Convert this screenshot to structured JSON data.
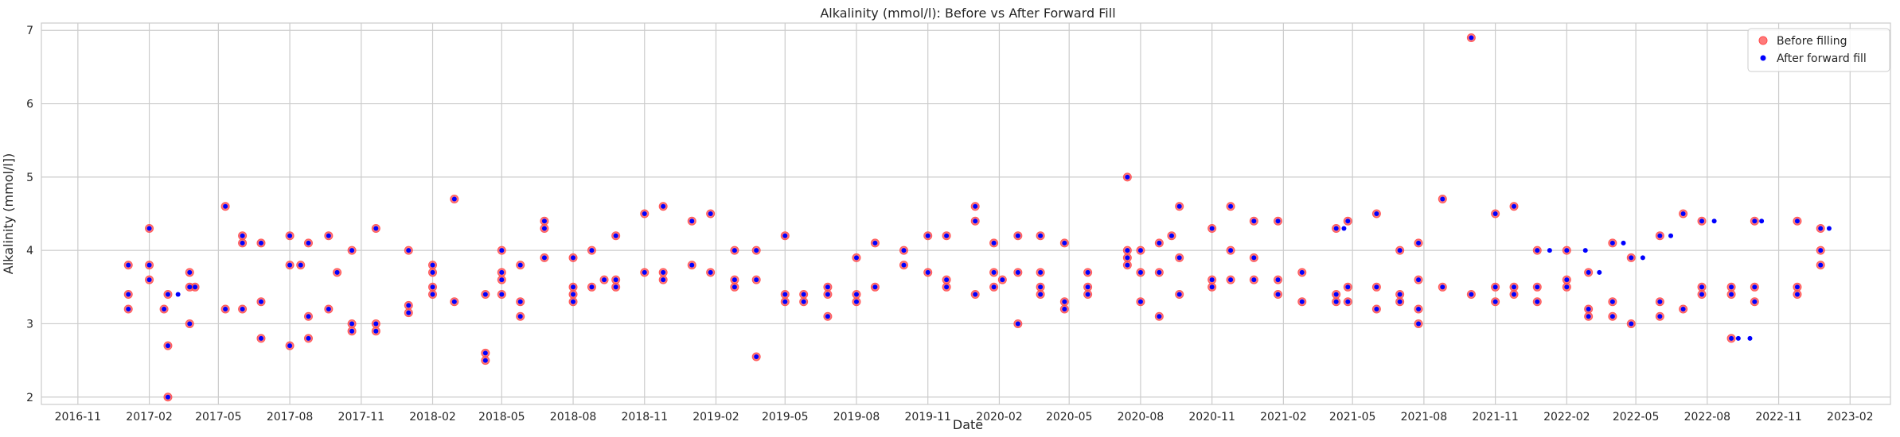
{
  "chart_data": {
    "type": "scatter",
    "title": "Alkalinity (mmol/l): Before vs After Forward Fill",
    "xlabel": "Date",
    "ylabel": "Alkalinity (mmol/l])",
    "ylim": [
      1.9,
      7.1
    ],
    "xlim": [
      "2016-09-15",
      "2023-03-25"
    ],
    "y_ticks": [
      2,
      3,
      4,
      5,
      6,
      7
    ],
    "x_ticks": [
      "2016-11",
      "2017-02",
      "2017-05",
      "2017-08",
      "2017-11",
      "2018-02",
      "2018-05",
      "2018-08",
      "2018-11",
      "2019-02",
      "2019-05",
      "2019-08",
      "2019-11",
      "2020-02",
      "2020-05",
      "2020-08",
      "2020-11",
      "2021-02",
      "2021-05",
      "2021-08",
      "2021-11",
      "2022-02",
      "2022-05",
      "2022-08",
      "2022-11",
      "2023-02"
    ],
    "grid": true,
    "legend_position": "top-right",
    "series": [
      {
        "name": "Before filling",
        "color": "#ff4d4d",
        "marker": "circle",
        "points": [
          [
            "2017-01-05",
            3.8
          ],
          [
            "2017-01-05",
            3.4
          ],
          [
            "2017-01-05",
            3.2
          ],
          [
            "2017-02-01",
            4.3
          ],
          [
            "2017-02-01",
            3.8
          ],
          [
            "2017-02-01",
            3.6
          ],
          [
            "2017-02-20",
            3.2
          ],
          [
            "2017-02-25",
            3.4
          ],
          [
            "2017-02-25",
            2.7
          ],
          [
            "2017-02-25",
            2.0
          ],
          [
            "2017-03-25",
            3.7
          ],
          [
            "2017-03-25",
            3.5
          ],
          [
            "2017-03-25",
            3.0
          ],
          [
            "2017-04-01",
            3.5
          ],
          [
            "2017-05-10",
            4.6
          ],
          [
            "2017-05-10",
            3.2
          ],
          [
            "2017-06-01",
            4.2
          ],
          [
            "2017-06-01",
            4.1
          ],
          [
            "2017-06-01",
            3.2
          ],
          [
            "2017-06-25",
            4.1
          ],
          [
            "2017-06-25",
            3.3
          ],
          [
            "2017-06-25",
            2.8
          ],
          [
            "2017-08-01",
            4.2
          ],
          [
            "2017-08-01",
            3.8
          ],
          [
            "2017-08-01",
            2.7
          ],
          [
            "2017-08-15",
            3.8
          ],
          [
            "2017-08-25",
            4.1
          ],
          [
            "2017-08-25",
            3.1
          ],
          [
            "2017-08-25",
            2.8
          ],
          [
            "2017-09-20",
            4.2
          ],
          [
            "2017-09-20",
            3.2
          ],
          [
            "2017-10-01",
            3.7
          ],
          [
            "2017-10-20",
            4.0
          ],
          [
            "2017-10-20",
            3.0
          ],
          [
            "2017-10-20",
            2.9
          ],
          [
            "2017-11-20",
            4.3
          ],
          [
            "2017-11-20",
            3.0
          ],
          [
            "2017-11-20",
            2.9
          ],
          [
            "2018-01-01",
            4.0
          ],
          [
            "2018-01-01",
            3.25
          ],
          [
            "2018-01-01",
            3.15
          ],
          [
            "2018-02-01",
            3.8
          ],
          [
            "2018-02-01",
            3.7
          ],
          [
            "2018-02-01",
            3.5
          ],
          [
            "2018-02-01",
            3.4
          ],
          [
            "2018-03-01",
            4.7
          ],
          [
            "2018-03-01",
            3.3
          ],
          [
            "2018-04-10",
            3.4
          ],
          [
            "2018-04-10",
            2.6
          ],
          [
            "2018-04-10",
            2.5
          ],
          [
            "2018-05-01",
            4.0
          ],
          [
            "2018-05-01",
            3.7
          ],
          [
            "2018-05-01",
            3.6
          ],
          [
            "2018-05-01",
            3.4
          ],
          [
            "2018-05-25",
            3.8
          ],
          [
            "2018-05-25",
            3.3
          ],
          [
            "2018-05-25",
            3.1
          ],
          [
            "2018-06-25",
            4.4
          ],
          [
            "2018-06-25",
            4.3
          ],
          [
            "2018-06-25",
            3.9
          ],
          [
            "2018-08-01",
            3.9
          ],
          [
            "2018-08-01",
            3.5
          ],
          [
            "2018-08-01",
            3.4
          ],
          [
            "2018-08-01",
            3.3
          ],
          [
            "2018-08-25",
            4.0
          ],
          [
            "2018-08-25",
            3.5
          ],
          [
            "2018-09-10",
            3.6
          ],
          [
            "2018-09-25",
            4.2
          ],
          [
            "2018-09-25",
            3.6
          ],
          [
            "2018-09-25",
            3.5
          ],
          [
            "2018-11-01",
            4.5
          ],
          [
            "2018-11-01",
            3.7
          ],
          [
            "2018-11-25",
            4.6
          ],
          [
            "2018-11-25",
            3.7
          ],
          [
            "2018-11-25",
            3.6
          ],
          [
            "2019-01-01",
            4.4
          ],
          [
            "2019-01-01",
            3.8
          ],
          [
            "2019-01-25",
            4.5
          ],
          [
            "2019-01-25",
            3.7
          ],
          [
            "2019-02-25",
            4.0
          ],
          [
            "2019-02-25",
            3.6
          ],
          [
            "2019-02-25",
            3.5
          ],
          [
            "2019-03-25",
            4.0
          ],
          [
            "2019-03-25",
            3.6
          ],
          [
            "2019-03-25",
            2.55
          ],
          [
            "2019-05-01",
            4.2
          ],
          [
            "2019-05-01",
            3.4
          ],
          [
            "2019-05-01",
            3.3
          ],
          [
            "2019-05-25",
            3.4
          ],
          [
            "2019-05-25",
            3.3
          ],
          [
            "2019-06-25",
            3.5
          ],
          [
            "2019-06-25",
            3.4
          ],
          [
            "2019-06-25",
            3.1
          ],
          [
            "2019-08-01",
            3.9
          ],
          [
            "2019-08-01",
            3.4
          ],
          [
            "2019-08-01",
            3.3
          ],
          [
            "2019-08-25",
            4.1
          ],
          [
            "2019-08-25",
            3.5
          ],
          [
            "2019-10-01",
            4.0
          ],
          [
            "2019-10-01",
            3.8
          ],
          [
            "2019-11-01",
            4.2
          ],
          [
            "2019-11-01",
            3.7
          ],
          [
            "2019-11-25",
            4.2
          ],
          [
            "2019-11-25",
            3.6
          ],
          [
            "2019-11-25",
            3.5
          ],
          [
            "2020-01-01",
            4.6
          ],
          [
            "2020-01-01",
            4.4
          ],
          [
            "2020-01-01",
            3.4
          ],
          [
            "2020-01-25",
            4.1
          ],
          [
            "2020-01-25",
            3.7
          ],
          [
            "2020-01-25",
            3.5
          ],
          [
            "2020-02-05",
            3.6
          ],
          [
            "2020-02-25",
            4.2
          ],
          [
            "2020-02-25",
            3.7
          ],
          [
            "2020-02-25",
            3.0
          ],
          [
            "2020-03-25",
            4.2
          ],
          [
            "2020-03-25",
            3.7
          ],
          [
            "2020-03-25",
            3.5
          ],
          [
            "2020-03-25",
            3.4
          ],
          [
            "2020-04-25",
            4.1
          ],
          [
            "2020-04-25",
            3.3
          ],
          [
            "2020-04-25",
            3.2
          ],
          [
            "2020-05-25",
            3.7
          ],
          [
            "2020-05-25",
            3.5
          ],
          [
            "2020-05-25",
            3.4
          ],
          [
            "2020-07-15",
            5.0
          ],
          [
            "2020-07-15",
            4.0
          ],
          [
            "2020-07-15",
            3.9
          ],
          [
            "2020-07-15",
            3.8
          ],
          [
            "2020-08-01",
            4.0
          ],
          [
            "2020-08-01",
            3.7
          ],
          [
            "2020-08-01",
            3.3
          ],
          [
            "2020-08-25",
            4.1
          ],
          [
            "2020-08-25",
            3.7
          ],
          [
            "2020-08-25",
            3.1
          ],
          [
            "2020-09-10",
            4.2
          ],
          [
            "2020-09-20",
            4.6
          ],
          [
            "2020-09-20",
            3.9
          ],
          [
            "2020-09-20",
            3.4
          ],
          [
            "2020-11-01",
            4.3
          ],
          [
            "2020-11-01",
            3.6
          ],
          [
            "2020-11-01",
            3.5
          ],
          [
            "2020-11-25",
            4.6
          ],
          [
            "2020-11-25",
            4.0
          ],
          [
            "2020-11-25",
            3.6
          ],
          [
            "2020-12-25",
            4.4
          ],
          [
            "2020-12-25",
            3.9
          ],
          [
            "2020-12-25",
            3.6
          ],
          [
            "2021-01-25",
            4.4
          ],
          [
            "2021-01-25",
            3.6
          ],
          [
            "2021-01-25",
            3.4
          ],
          [
            "2021-02-25",
            3.7
          ],
          [
            "2021-02-25",
            3.3
          ],
          [
            "2021-04-10",
            4.3
          ],
          [
            "2021-04-10",
            3.4
          ],
          [
            "2021-04-10",
            3.3
          ],
          [
            "2021-04-25",
            4.4
          ],
          [
            "2021-04-25",
            3.5
          ],
          [
            "2021-04-25",
            3.3
          ],
          [
            "2021-06-01",
            4.5
          ],
          [
            "2021-06-01",
            3.5
          ],
          [
            "2021-06-01",
            3.2
          ],
          [
            "2021-07-01",
            4.0
          ],
          [
            "2021-07-01",
            3.4
          ],
          [
            "2021-07-01",
            3.3
          ],
          [
            "2021-07-25",
            4.1
          ],
          [
            "2021-07-25",
            3.6
          ],
          [
            "2021-07-25",
            3.2
          ],
          [
            "2021-07-25",
            3.0
          ],
          [
            "2021-08-25",
            4.7
          ],
          [
            "2021-08-25",
            3.5
          ],
          [
            "2021-10-01",
            6.9
          ],
          [
            "2021-10-01",
            3.4
          ],
          [
            "2021-11-01",
            4.5
          ],
          [
            "2021-11-01",
            3.5
          ],
          [
            "2021-11-01",
            3.3
          ],
          [
            "2021-11-25",
            4.6
          ],
          [
            "2021-11-25",
            3.5
          ],
          [
            "2021-11-25",
            3.4
          ],
          [
            "2021-12-25",
            4.0
          ],
          [
            "2021-12-25",
            3.5
          ],
          [
            "2021-12-25",
            3.3
          ],
          [
            "2022-02-01",
            4.0
          ],
          [
            "2022-02-01",
            3.6
          ],
          [
            "2022-02-01",
            3.5
          ],
          [
            "2022-03-01",
            3.7
          ],
          [
            "2022-03-01",
            3.2
          ],
          [
            "2022-03-01",
            3.1
          ],
          [
            "2022-04-01",
            4.1
          ],
          [
            "2022-04-01",
            3.3
          ],
          [
            "2022-04-01",
            3.1
          ],
          [
            "2022-04-25",
            3.9
          ],
          [
            "2022-04-25",
            3.0
          ],
          [
            "2022-06-01",
            4.2
          ],
          [
            "2022-06-01",
            3.3
          ],
          [
            "2022-06-01",
            3.1
          ],
          [
            "2022-07-01",
            4.5
          ],
          [
            "2022-07-01",
            3.2
          ],
          [
            "2022-07-25",
            4.4
          ],
          [
            "2022-07-25",
            3.5
          ],
          [
            "2022-07-25",
            3.4
          ],
          [
            "2022-09-01",
            3.5
          ],
          [
            "2022-09-01",
            3.4
          ],
          [
            "2022-09-01",
            2.8
          ],
          [
            "2022-10-01",
            4.4
          ],
          [
            "2022-10-01",
            3.5
          ],
          [
            "2022-10-01",
            3.3
          ],
          [
            "2022-11-25",
            4.4
          ],
          [
            "2022-11-25",
            3.5
          ],
          [
            "2022-11-25",
            3.4
          ],
          [
            "2022-12-25",
            4.3
          ],
          [
            "2022-12-25",
            4.0
          ],
          [
            "2022-12-25",
            3.8
          ]
        ]
      },
      {
        "name": "After forward fill",
        "color": "#0000ff",
        "marker": "circle",
        "extra_points": [
          [
            "2017-03-10",
            3.4
          ],
          [
            "2021-04-20",
            4.3
          ],
          [
            "2022-01-10",
            4.0
          ],
          [
            "2022-02-25",
            4.0
          ],
          [
            "2022-03-15",
            3.7
          ],
          [
            "2022-04-15",
            4.1
          ],
          [
            "2022-05-10",
            3.9
          ],
          [
            "2022-06-15",
            4.2
          ],
          [
            "2022-08-10",
            4.4
          ],
          [
            "2022-09-10",
            2.8
          ],
          [
            "2022-09-25",
            2.8
          ],
          [
            "2022-10-10",
            4.4
          ],
          [
            "2023-01-05",
            4.3
          ]
        ]
      }
    ]
  }
}
